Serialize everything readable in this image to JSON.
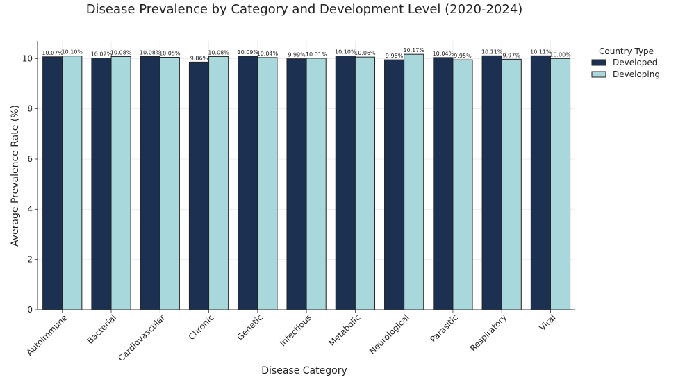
{
  "chart_data": {
    "type": "bar",
    "title": "Disease Prevalence by Category and Development Level (2020-2024)",
    "xlabel": "Disease Category",
    "ylabel": "Average Prevalence Rate (%)",
    "ylim": [
      0,
      10.7
    ],
    "yticks": [
      0,
      2,
      4,
      6,
      8,
      10
    ],
    "grid": true,
    "legend_title": "Country Type",
    "legend_position": "right",
    "categories": [
      "Autoimmune",
      "Bacterial",
      "Cardiovascular",
      "Chronic",
      "Genetic",
      "Infectious",
      "Metabolic",
      "Neurological",
      "Parasitic",
      "Respiratory",
      "Viral"
    ],
    "series": [
      {
        "name": "Developed",
        "color": "#1c3152",
        "values": [
          10.07,
          10.02,
          10.08,
          9.86,
          10.09,
          9.99,
          10.1,
          9.95,
          10.04,
          10.11,
          10.11
        ],
        "labels": [
          "10.07%",
          "10.02%",
          "10.08%",
          "9.86%",
          "10.09%",
          "9.99%",
          "10.10%",
          "9.95%",
          "10.04%",
          "10.11%",
          "10.11%"
        ]
      },
      {
        "name": "Developing",
        "color": "#a8d8db",
        "values": [
          10.1,
          10.08,
          10.05,
          10.08,
          10.04,
          10.01,
          10.06,
          10.17,
          9.95,
          9.97,
          10.0
        ],
        "labels": [
          "10.10%",
          "10.08%",
          "10.05%",
          "10.08%",
          "10.04%",
          "10.01%",
          "10.06%",
          "10.17%",
          "9.95%",
          "9.97%",
          "10.00%"
        ]
      }
    ]
  }
}
